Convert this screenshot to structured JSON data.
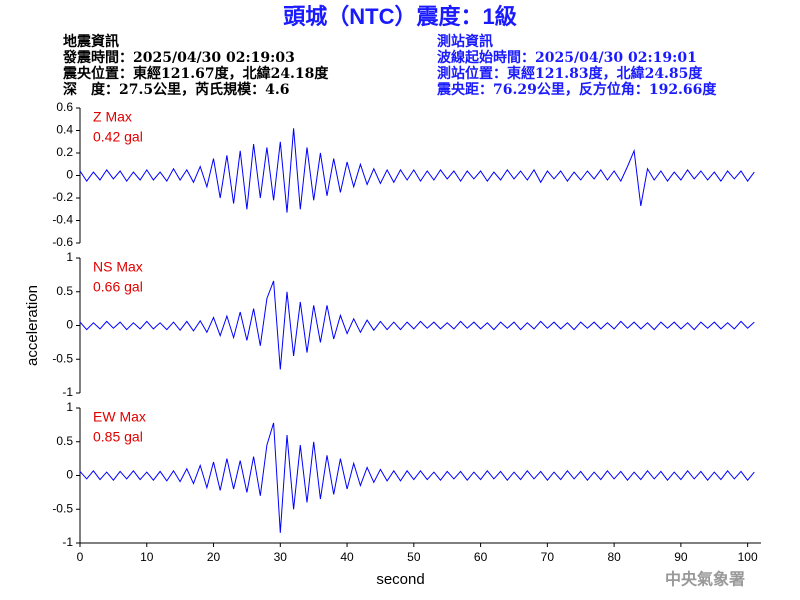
{
  "header": {
    "title": "頭城（NTC）震度：1級",
    "left_info": [
      "地震資訊",
      "發震時間：2025/04/30 02:19:03",
      "震央位置：東經121.67度，北緯24.18度",
      "深　度：27.5公里，芮氏規模：4.6"
    ],
    "right_info": [
      "測站資訊",
      "波線起始時間：2025/04/30 02:19:01",
      "測站位置：東經121.83度，北緯24.85度",
      "震央距：76.29公里，反方位角：192.66度"
    ],
    "footer": "中央氣象署"
  },
  "chart_data": [
    {
      "type": "line",
      "label": "Z Max",
      "max_label": "0.42 gal",
      "color": "#0000ff",
      "xlim": [
        0,
        102
      ],
      "ylim": [
        -0.6,
        0.6
      ],
      "yticks": [
        0.6,
        0.4,
        0.2,
        0,
        -0.2,
        -0.4,
        -0.6
      ],
      "x": [
        0,
        1,
        2,
        3,
        4,
        5,
        6,
        7,
        8,
        9,
        10,
        11,
        12,
        13,
        14,
        15,
        16,
        17,
        18,
        19,
        20,
        21,
        22,
        23,
        24,
        25,
        26,
        27,
        28,
        29,
        30,
        31,
        32,
        33,
        34,
        35,
        36,
        37,
        38,
        39,
        40,
        41,
        42,
        43,
        44,
        45,
        46,
        47,
        48,
        49,
        50,
        51,
        52,
        53,
        54,
        55,
        56,
        57,
        58,
        59,
        60,
        61,
        62,
        63,
        64,
        65,
        66,
        67,
        68,
        69,
        70,
        71,
        72,
        73,
        74,
        75,
        76,
        77,
        78,
        79,
        80,
        81,
        82,
        83,
        84,
        85,
        86,
        87,
        88,
        89,
        90,
        91,
        92,
        93,
        94,
        95,
        96,
        97,
        98,
        99,
        100,
        101
      ],
      "values": [
        0.04,
        -0.05,
        0.03,
        -0.04,
        0.05,
        -0.03,
        0.04,
        -0.05,
        0.03,
        -0.04,
        0.05,
        -0.04,
        0.03,
        -0.05,
        0.06,
        -0.04,
        0.05,
        -0.06,
        0.08,
        -0.1,
        0.15,
        -0.2,
        0.18,
        -0.25,
        0.22,
        -0.3,
        0.28,
        -0.2,
        0.25,
        -0.22,
        0.3,
        -0.33,
        0.42,
        -0.3,
        0.25,
        -0.22,
        0.2,
        -0.18,
        0.15,
        -0.15,
        0.12,
        -0.1,
        0.1,
        -0.08,
        0.06,
        -0.07,
        0.05,
        -0.06,
        0.05,
        -0.04,
        0.05,
        -0.05,
        0.04,
        -0.04,
        0.05,
        -0.03,
        0.04,
        -0.05,
        0.04,
        -0.03,
        0.04,
        -0.05,
        0.03,
        -0.04,
        0.05,
        -0.03,
        0.04,
        -0.04,
        0.05,
        -0.06,
        0.04,
        -0.03,
        0.04,
        -0.05,
        0.03,
        -0.04,
        0.04,
        -0.03,
        0.05,
        -0.04,
        0.04,
        -0.05,
        0.08,
        0.22,
        -0.27,
        0.06,
        -0.04,
        0.04,
        -0.05,
        0.03,
        -0.04,
        0.05,
        -0.03,
        0.04,
        -0.04,
        0.03,
        -0.05,
        0.04,
        -0.03,
        0.04,
        -0.05,
        0.03
      ]
    },
    {
      "type": "line",
      "label": "NS Max",
      "max_label": "0.66 gal",
      "color": "#0000ff",
      "ylabel": "acceleration",
      "xlim": [
        0,
        102
      ],
      "ylim": [
        -1,
        1
      ],
      "yticks": [
        1,
        0.5,
        0,
        -0.5,
        -1
      ],
      "x": [
        0,
        1,
        2,
        3,
        4,
        5,
        6,
        7,
        8,
        9,
        10,
        11,
        12,
        13,
        14,
        15,
        16,
        17,
        18,
        19,
        20,
        21,
        22,
        23,
        24,
        25,
        26,
        27,
        28,
        29,
        30,
        31,
        32,
        33,
        34,
        35,
        36,
        37,
        38,
        39,
        40,
        41,
        42,
        43,
        44,
        45,
        46,
        47,
        48,
        49,
        50,
        51,
        52,
        53,
        54,
        55,
        56,
        57,
        58,
        59,
        60,
        61,
        62,
        63,
        64,
        65,
        66,
        67,
        68,
        69,
        70,
        71,
        72,
        73,
        74,
        75,
        76,
        77,
        78,
        79,
        80,
        81,
        82,
        83,
        84,
        85,
        86,
        87,
        88,
        89,
        90,
        91,
        92,
        93,
        94,
        95,
        96,
        97,
        98,
        99,
        100,
        101
      ],
      "values": [
        0.05,
        -0.06,
        0.04,
        -0.05,
        0.06,
        -0.04,
        0.05,
        -0.06,
        0.04,
        -0.05,
        0.06,
        -0.05,
        0.04,
        -0.06,
        0.05,
        -0.07,
        0.06,
        -0.08,
        0.07,
        -0.1,
        0.12,
        -0.15,
        0.14,
        -0.18,
        0.2,
        -0.22,
        0.25,
        -0.3,
        0.4,
        0.66,
        -0.65,
        0.5,
        -0.45,
        0.35,
        -0.4,
        0.3,
        -0.25,
        0.3,
        -0.2,
        0.15,
        -0.12,
        0.1,
        -0.1,
        0.08,
        -0.07,
        0.06,
        -0.06,
        0.05,
        -0.06,
        0.05,
        -0.05,
        0.06,
        -0.04,
        0.05,
        -0.05,
        0.04,
        -0.05,
        0.06,
        -0.04,
        0.05,
        -0.05,
        0.04,
        -0.06,
        0.05,
        -0.04,
        0.05,
        -0.06,
        0.04,
        -0.05,
        0.06,
        -0.04,
        0.05,
        -0.05,
        0.04,
        -0.06,
        0.05,
        -0.04,
        0.05,
        -0.05,
        0.04,
        -0.05,
        0.06,
        -0.04,
        0.05,
        -0.05,
        0.04,
        -0.06,
        0.05,
        -0.04,
        0.05,
        -0.05,
        0.04,
        -0.06,
        0.05,
        -0.04,
        0.05,
        -0.05,
        0.04,
        -0.05,
        0.06,
        -0.04,
        0.05
      ]
    },
    {
      "type": "line",
      "label": "EW Max",
      "max_label": "0.85 gal",
      "color": "#0000ff",
      "xlabel": "second",
      "xlim": [
        0,
        102
      ],
      "xticks": [
        0,
        10,
        20,
        30,
        40,
        50,
        60,
        70,
        80,
        90,
        100
      ],
      "ylim": [
        -1,
        1
      ],
      "yticks": [
        1,
        0.5,
        0,
        -0.5,
        -1
      ],
      "x": [
        0,
        1,
        2,
        3,
        4,
        5,
        6,
        7,
        8,
        9,
        10,
        11,
        12,
        13,
        14,
        15,
        16,
        17,
        18,
        19,
        20,
        21,
        22,
        23,
        24,
        25,
        26,
        27,
        28,
        29,
        30,
        31,
        32,
        33,
        34,
        35,
        36,
        37,
        38,
        39,
        40,
        41,
        42,
        43,
        44,
        45,
        46,
        47,
        48,
        49,
        50,
        51,
        52,
        53,
        54,
        55,
        56,
        57,
        58,
        59,
        60,
        61,
        62,
        63,
        64,
        65,
        66,
        67,
        68,
        69,
        70,
        71,
        72,
        73,
        74,
        75,
        76,
        77,
        78,
        79,
        80,
        81,
        82,
        83,
        84,
        85,
        86,
        87,
        88,
        89,
        90,
        91,
        92,
        93,
        94,
        95,
        96,
        97,
        98,
        99,
        100,
        101
      ],
      "values": [
        0.06,
        -0.05,
        0.07,
        -0.06,
        0.05,
        -0.07,
        0.06,
        -0.05,
        0.07,
        -0.06,
        0.05,
        -0.07,
        0.06,
        -0.08,
        0.07,
        -0.09,
        0.1,
        -0.12,
        0.15,
        -0.18,
        0.2,
        -0.22,
        0.25,
        -0.2,
        0.22,
        -0.25,
        0.28,
        -0.3,
        0.45,
        0.78,
        -0.85,
        0.6,
        -0.5,
        0.45,
        -0.4,
        0.5,
        -0.35,
        0.3,
        -0.28,
        0.25,
        -0.2,
        0.18,
        -0.15,
        0.12,
        -0.1,
        0.09,
        -0.08,
        0.07,
        -0.08,
        0.07,
        -0.06,
        0.07,
        -0.06,
        0.05,
        -0.07,
        0.06,
        -0.05,
        0.06,
        -0.07,
        0.05,
        -0.06,
        0.07,
        -0.05,
        0.06,
        -0.07,
        0.05,
        -0.06,
        0.07,
        -0.05,
        0.06,
        -0.07,
        0.05,
        -0.06,
        0.07,
        -0.05,
        0.06,
        -0.07,
        0.05,
        -0.06,
        0.07,
        -0.05,
        0.06,
        -0.07,
        0.05,
        -0.06,
        0.07,
        -0.05,
        0.06,
        -0.07,
        0.05,
        -0.06,
        0.07,
        -0.05,
        0.06,
        -0.07,
        0.05,
        -0.06,
        0.07,
        -0.05,
        0.06,
        -0.07,
        0.05
      ]
    }
  ]
}
